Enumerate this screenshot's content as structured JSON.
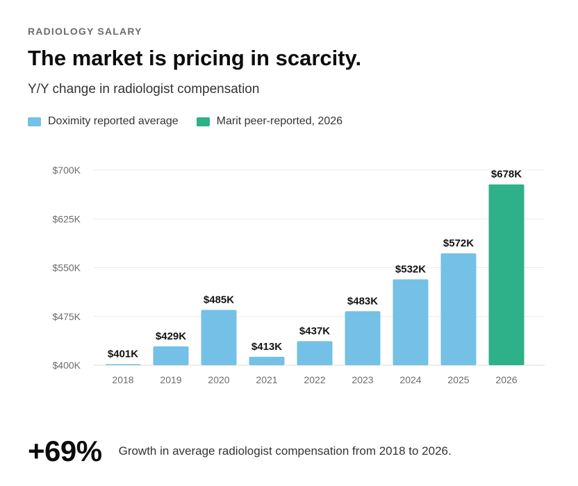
{
  "eyebrow": "RADIOLOGY SALARY",
  "title": "The market is pricing in scarcity.",
  "subtitle": "Y/Y change in radiologist compensation",
  "legend": [
    {
      "label": "Doximity reported average",
      "color": "#74c0e6"
    },
    {
      "label": "Marit peer-reported, 2026",
      "color": "#2eb088"
    }
  ],
  "footer": {
    "stat": "+69%",
    "text": "Growth in average radiologist compensation from 2018 to 2026."
  },
  "chart_data": {
    "type": "bar",
    "categories": [
      "2018",
      "2019",
      "2020",
      "2021",
      "2022",
      "2023",
      "2024",
      "2025",
      "2026"
    ],
    "values": [
      401,
      429,
      485,
      413,
      437,
      483,
      532,
      572,
      678
    ],
    "value_labels": [
      "$401K",
      "$429K",
      "$485K",
      "$413K",
      "$437K",
      "$483K",
      "$532K",
      "$572K",
      "$678K"
    ],
    "series_index": [
      0,
      0,
      0,
      0,
      0,
      0,
      0,
      0,
      1
    ],
    "ylim": [
      400,
      700
    ],
    "yticks": [
      400,
      475,
      550,
      625,
      700
    ],
    "ytick_labels": [
      "$400K",
      "$475K",
      "$550K",
      "$625K",
      "$700K"
    ],
    "grid": true,
    "legend_position": "top-left"
  }
}
